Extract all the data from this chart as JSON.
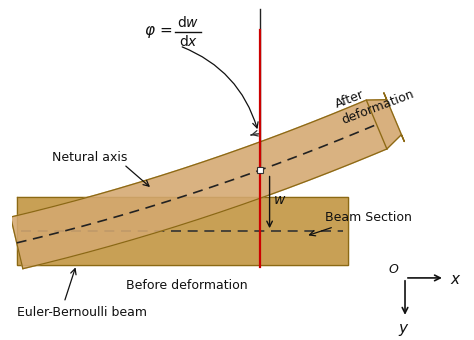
{
  "bg_color": "#ffffff",
  "beam_color": "#D4A870",
  "beam_before_color": "#C8A055",
  "beam_edge_color": "#8B6914",
  "beam_before_edge": "#888855",
  "neutral_dashed_color": "#222222",
  "red_line_color": "#CC0000",
  "text_color": "#111111",
  "labels": {
    "phi": "φ =",
    "dw": "dw",
    "dx": "dx",
    "w": "w",
    "neutral_axis": "Netural axis",
    "after_deformation": "After\ndeformation",
    "before_deformation": "Before deformation",
    "beam_section": "Beam Section",
    "euler": "Euler-Bernoulli beam"
  },
  "figsize": [
    4.74,
    3.4
  ],
  "dpi": 100
}
